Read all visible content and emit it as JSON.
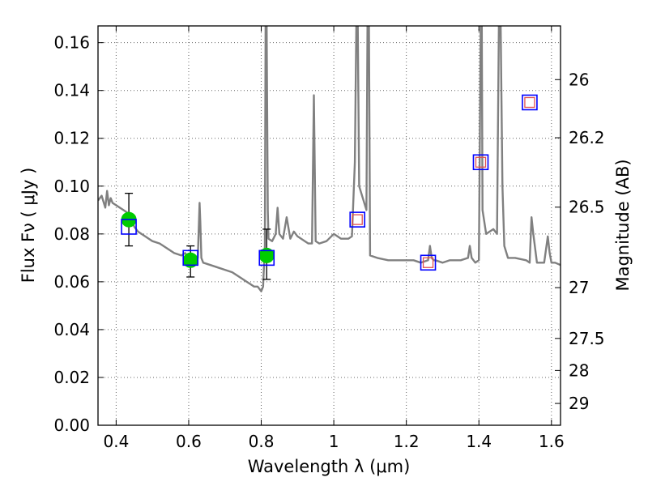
{
  "chart_data": {
    "type": "line",
    "xlabel": "Wavelength  λ (μm)",
    "ylabel": "Flux  Fν  ( μJy )",
    "y2label": "Magnitude (AB)",
    "xlim": [
      0.35,
      1.625
    ],
    "ylim": [
      0.0,
      0.167
    ],
    "grid": true,
    "x_ticks": [
      0.4,
      0.6,
      0.8,
      1.0,
      1.2,
      1.4,
      1.6
    ],
    "x_tick_labels": [
      "0.4",
      "0.6",
      "0.8",
      "1",
      "1.2",
      "1.4",
      "1.6"
    ],
    "y_ticks": [
      0.0,
      0.02,
      0.04,
      0.06,
      0.08,
      0.1,
      0.12,
      0.14,
      0.16
    ],
    "y_tick_labels": [
      "0.00",
      "0.02",
      "0.04",
      "0.06",
      "0.08",
      "0.10",
      "0.12",
      "0.14",
      "0.16"
    ],
    "y2_ticks": [
      {
        "label": "26",
        "value": 26.0
      },
      {
        "label": "26.2",
        "value": 26.2
      },
      {
        "label": "26.5",
        "value": 26.5
      },
      {
        "label": "27",
        "value": 27.0
      },
      {
        "label": "27.5",
        "value": 27.5
      },
      {
        "label": "28",
        "value": 28.0
      },
      {
        "label": "29",
        "value": 29.0
      }
    ],
    "series": [
      {
        "kind": "spectrum",
        "color": "#808080",
        "x": [
          0.35,
          0.36,
          0.37,
          0.375,
          0.38,
          0.385,
          0.39,
          0.4,
          0.41,
          0.42,
          0.43,
          0.44,
          0.45,
          0.46,
          0.48,
          0.5,
          0.52,
          0.54,
          0.56,
          0.58,
          0.59,
          0.6,
          0.61,
          0.62,
          0.625,
          0.63,
          0.632,
          0.635,
          0.64,
          0.66,
          0.68,
          0.7,
          0.72,
          0.74,
          0.75,
          0.76,
          0.77,
          0.78,
          0.79,
          0.795,
          0.8,
          0.805,
          0.81,
          0.812,
          0.815,
          0.818,
          0.82,
          0.83,
          0.84,
          0.845,
          0.85,
          0.86,
          0.87,
          0.88,
          0.89,
          0.9,
          0.91,
          0.92,
          0.93,
          0.94,
          0.945,
          0.95,
          0.96,
          0.98,
          1.0,
          1.02,
          1.04,
          1.05,
          1.058,
          1.062,
          1.066,
          1.07,
          1.09,
          1.093,
          1.097,
          1.1,
          1.12,
          1.15,
          1.18,
          1.2,
          1.22,
          1.24,
          1.26,
          1.265,
          1.27,
          1.275,
          1.28,
          1.3,
          1.32,
          1.35,
          1.37,
          1.375,
          1.38,
          1.39,
          1.4,
          1.405,
          1.408,
          1.41,
          1.42,
          1.44,
          1.45,
          1.455,
          1.46,
          1.465,
          1.47,
          1.48,
          1.5,
          1.53,
          1.54,
          1.545,
          1.55,
          1.56,
          1.58,
          1.59,
          1.595,
          1.6,
          1.61,
          1.625
        ],
        "y": [
          0.094,
          0.096,
          0.091,
          0.098,
          0.092,
          0.095,
          0.093,
          0.092,
          0.091,
          0.09,
          0.089,
          0.087,
          0.083,
          0.081,
          0.079,
          0.077,
          0.076,
          0.074,
          0.072,
          0.071,
          0.072,
          0.07,
          0.069,
          0.068,
          0.07,
          0.093,
          0.085,
          0.07,
          0.068,
          0.067,
          0.066,
          0.065,
          0.064,
          0.062,
          0.061,
          0.06,
          0.059,
          0.058,
          0.058,
          0.057,
          0.056,
          0.058,
          0.075,
          0.167,
          0.167,
          0.09,
          0.078,
          0.077,
          0.08,
          0.091,
          0.08,
          0.078,
          0.087,
          0.078,
          0.081,
          0.079,
          0.078,
          0.077,
          0.076,
          0.076,
          0.138,
          0.077,
          0.076,
          0.077,
          0.08,
          0.078,
          0.078,
          0.079,
          0.11,
          0.167,
          0.167,
          0.1,
          0.09,
          0.167,
          0.167,
          0.071,
          0.07,
          0.069,
          0.069,
          0.069,
          0.069,
          0.068,
          0.069,
          0.075,
          0.07,
          0.069,
          0.069,
          0.068,
          0.069,
          0.069,
          0.07,
          0.075,
          0.07,
          0.068,
          0.069,
          0.167,
          0.167,
          0.09,
          0.08,
          0.082,
          0.08,
          0.167,
          0.167,
          0.1,
          0.075,
          0.07,
          0.07,
          0.069,
          0.068,
          0.087,
          0.08,
          0.068,
          0.068,
          0.079,
          0.072,
          0.068,
          0.068,
          0.067
        ]
      },
      {
        "kind": "observed",
        "color": "#00cc00",
        "x": [
          0.435,
          0.605,
          0.815
        ],
        "y": [
          0.086,
          0.069,
          0.071
        ],
        "yerr_low": [
          0.075,
          0.062,
          0.061
        ],
        "yerr_high": [
          0.097,
          0.075,
          0.082
        ]
      },
      {
        "kind": "model-blue-squares",
        "color": "#0000ff",
        "x": [
          0.435,
          0.605,
          0.815,
          1.065,
          1.26,
          1.405,
          1.54
        ],
        "y": [
          0.083,
          0.07,
          0.07,
          0.086,
          0.068,
          0.11,
          0.135
        ]
      },
      {
        "kind": "model-red-squares",
        "color": "#e05050",
        "x": [
          1.065,
          1.26,
          1.405,
          1.54
        ],
        "y": [
          0.086,
          0.068,
          0.11,
          0.135
        ]
      }
    ]
  }
}
